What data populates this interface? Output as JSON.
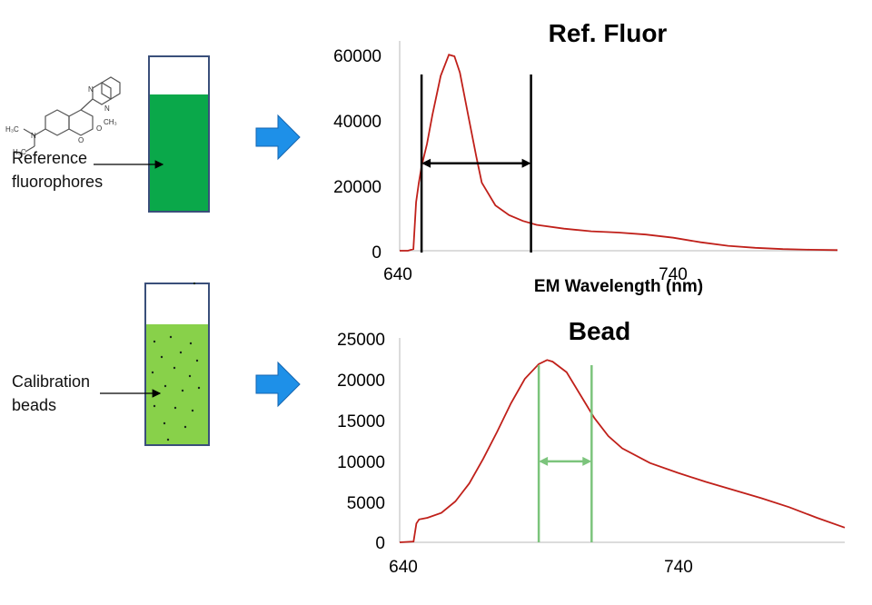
{
  "vials": [
    {
      "label_line1": "Reference",
      "label_line2": "fluorophores",
      "fill_color": "#0aa84a"
    },
    {
      "label_line1": "Calibration",
      "label_line2": "beads",
      "fill_color": "#88d14a"
    }
  ],
  "arrow_color": "#1e90e8",
  "molecule": {
    "atoms": [
      "H₃C",
      "N",
      "H₃C",
      "O",
      "O",
      "N",
      "N",
      "CH₃"
    ]
  },
  "chart_data": [
    {
      "type": "line",
      "title": "Ref. Fluor",
      "xlabel": "EM Wavelength (nm)",
      "ylabel": "",
      "xlim": [
        640,
        800
      ],
      "ylim": [
        0,
        60000
      ],
      "xticks": [
        "640",
        "740"
      ],
      "yticks": [
        "0",
        "20000",
        "40000",
        "60000"
      ],
      "line_color": "#c0201a",
      "x": [
        640,
        643,
        645,
        646,
        647,
        648,
        650,
        652,
        655,
        658,
        660,
        662,
        665,
        668,
        670,
        675,
        680,
        685,
        690,
        700,
        710,
        720,
        730,
        740,
        750,
        760,
        770,
        780,
        790,
        800
      ],
      "values": [
        0,
        0,
        500,
        15000,
        21000,
        26000,
        33000,
        42000,
        54000,
        60500,
        60000,
        55000,
        42000,
        29000,
        21000,
        14000,
        11000,
        9200,
        8000,
        6800,
        6000,
        5600,
        5000,
        4000,
        2600,
        1500,
        900,
        500,
        300,
        200
      ],
      "band_markers": [
        648,
        688
      ],
      "band_color": "#000000",
      "band_arrow_y": 27000
    },
    {
      "type": "line",
      "title": "Bead",
      "xlabel": "",
      "ylabel": "",
      "xlim": [
        640,
        800
      ],
      "ylim": [
        0,
        25000
      ],
      "xticks": [
        "640",
        "740"
      ],
      "yticks": [
        "0",
        "5000",
        "10000",
        "15000",
        "20000",
        "25000"
      ],
      "line_color": "#c0201a",
      "x": [
        640,
        645,
        646,
        647,
        650,
        655,
        660,
        665,
        670,
        675,
        680,
        685,
        690,
        693,
        695,
        700,
        705,
        710,
        715,
        720,
        730,
        740,
        750,
        760,
        770,
        780,
        790,
        800
      ],
      "values": [
        0,
        100,
        2300,
        2800,
        3000,
        3600,
        5000,
        7200,
        10200,
        13500,
        17000,
        20000,
        21800,
        22300,
        22100,
        20800,
        18000,
        15200,
        13000,
        11500,
        9700,
        8500,
        7400,
        6400,
        5400,
        4300,
        3000,
        1800
      ],
      "band_markers": [
        690,
        709
      ],
      "band_color": "#7cc47c",
      "band_arrow_y": 9900
    }
  ]
}
